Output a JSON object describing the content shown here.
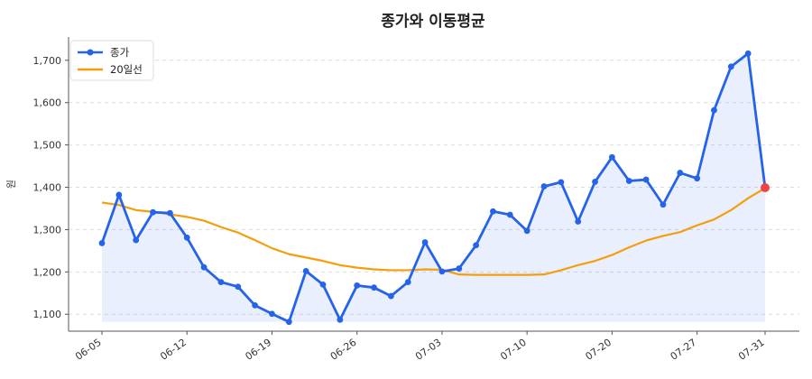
{
  "chart_data": {
    "type": "line",
    "title": "종가와 이동평균",
    "xlabel": "",
    "ylabel": "원",
    "ylim": [
      1060,
      1755
    ],
    "yticks": [
      1100,
      1200,
      1300,
      1400,
      1500,
      1600,
      1700
    ],
    "ytick_labels": [
      "1,100",
      "1,200",
      "1,300",
      "1,400",
      "1,500",
      "1,600",
      "1,700"
    ],
    "xtick_labels": [
      "06-05",
      "06-12",
      "06-19",
      "06-26",
      "07-03",
      "07-10",
      "07-20",
      "07-27",
      "07-31"
    ],
    "xtick_indices": [
      0,
      5,
      10,
      15,
      20,
      25,
      30,
      35,
      39
    ],
    "grid": "horizontal dashed",
    "legend_position": "top-left",
    "series": [
      {
        "name": "종가",
        "color": "#2563eb",
        "style": "line-with-markers",
        "fill": "area",
        "values": [
          1268,
          1382,
          1275,
          1341,
          1339,
          1281,
          1211,
          1176,
          1165,
          1121,
          1101,
          1082,
          1202,
          1170,
          1087,
          1168,
          1163,
          1143,
          1176,
          1270,
          1201,
          1208,
          1263,
          1343,
          1335,
          1297,
          1402,
          1412,
          1319,
          1413,
          1471,
          1415,
          1418,
          1359,
          1434,
          1421,
          1582,
          1685,
          1716,
          1399
        ]
      },
      {
        "name": "20일선",
        "color": "#f59e0b",
        "style": "line",
        "values": [
          1364,
          1358,
          1346,
          1342,
          1336,
          1330,
          1321,
          1306,
          1293,
          1275,
          1256,
          1242,
          1234,
          1226,
          1216,
          1210,
          1206,
          1204,
          1204,
          1206,
          1205,
          1194,
          1193,
          1193,
          1193,
          1193,
          1194,
          1204,
          1216,
          1226,
          1240,
          1258,
          1274,
          1285,
          1294,
          1310,
          1324,
          1346,
          1374,
          1398
        ]
      }
    ],
    "highlight_last_point": {
      "color": "#ef4444"
    }
  }
}
